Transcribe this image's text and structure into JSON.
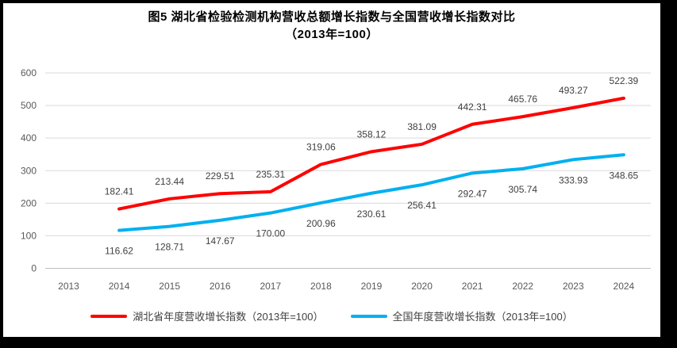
{
  "title": {
    "line1": "图5 湖北省检验检测机构营收总额增长指数与全国营收增长指数对比",
    "line2": "（2013年=100）"
  },
  "chart_data": {
    "type": "line",
    "title": "图5 湖北省检验检测机构营收总额增长指数与全国营收增长指数对比（2013年=100）",
    "categories": [
      "2013",
      "2014",
      "2015",
      "2016",
      "2017",
      "2018",
      "2019",
      "2020",
      "2021",
      "2022",
      "2023",
      "2024"
    ],
    "series": [
      {
        "name": "湖北省年度营收增长指数（2013年=100）",
        "color": "#FF0000",
        "label_position": "above",
        "values": [
          null,
          182.41,
          213.44,
          229.51,
          235.31,
          319.06,
          358.12,
          381.09,
          442.31,
          465.76,
          493.27,
          522.39
        ]
      },
      {
        "name": "全国年度营收增长指数（2013年=100）",
        "color": "#00B0F0",
        "label_position": "below",
        "values": [
          null,
          116.62,
          128.71,
          147.67,
          170.0,
          200.96,
          230.61,
          256.41,
          292.47,
          305.74,
          333.93,
          348.65
        ]
      }
    ],
    "xlabel": "",
    "ylabel": "",
    "ylim": [
      0,
      600
    ],
    "ytick_interval": 100,
    "yticks": [
      0,
      100,
      200,
      300,
      400,
      500,
      600
    ],
    "grid": "horizontal",
    "legend_position": "bottom",
    "data_labels": true,
    "colors": {
      "gridline": "#D9D9D9",
      "zero_line": "#BFBFBF",
      "axis_text": "#595959",
      "data_label_text": "#404040"
    }
  }
}
